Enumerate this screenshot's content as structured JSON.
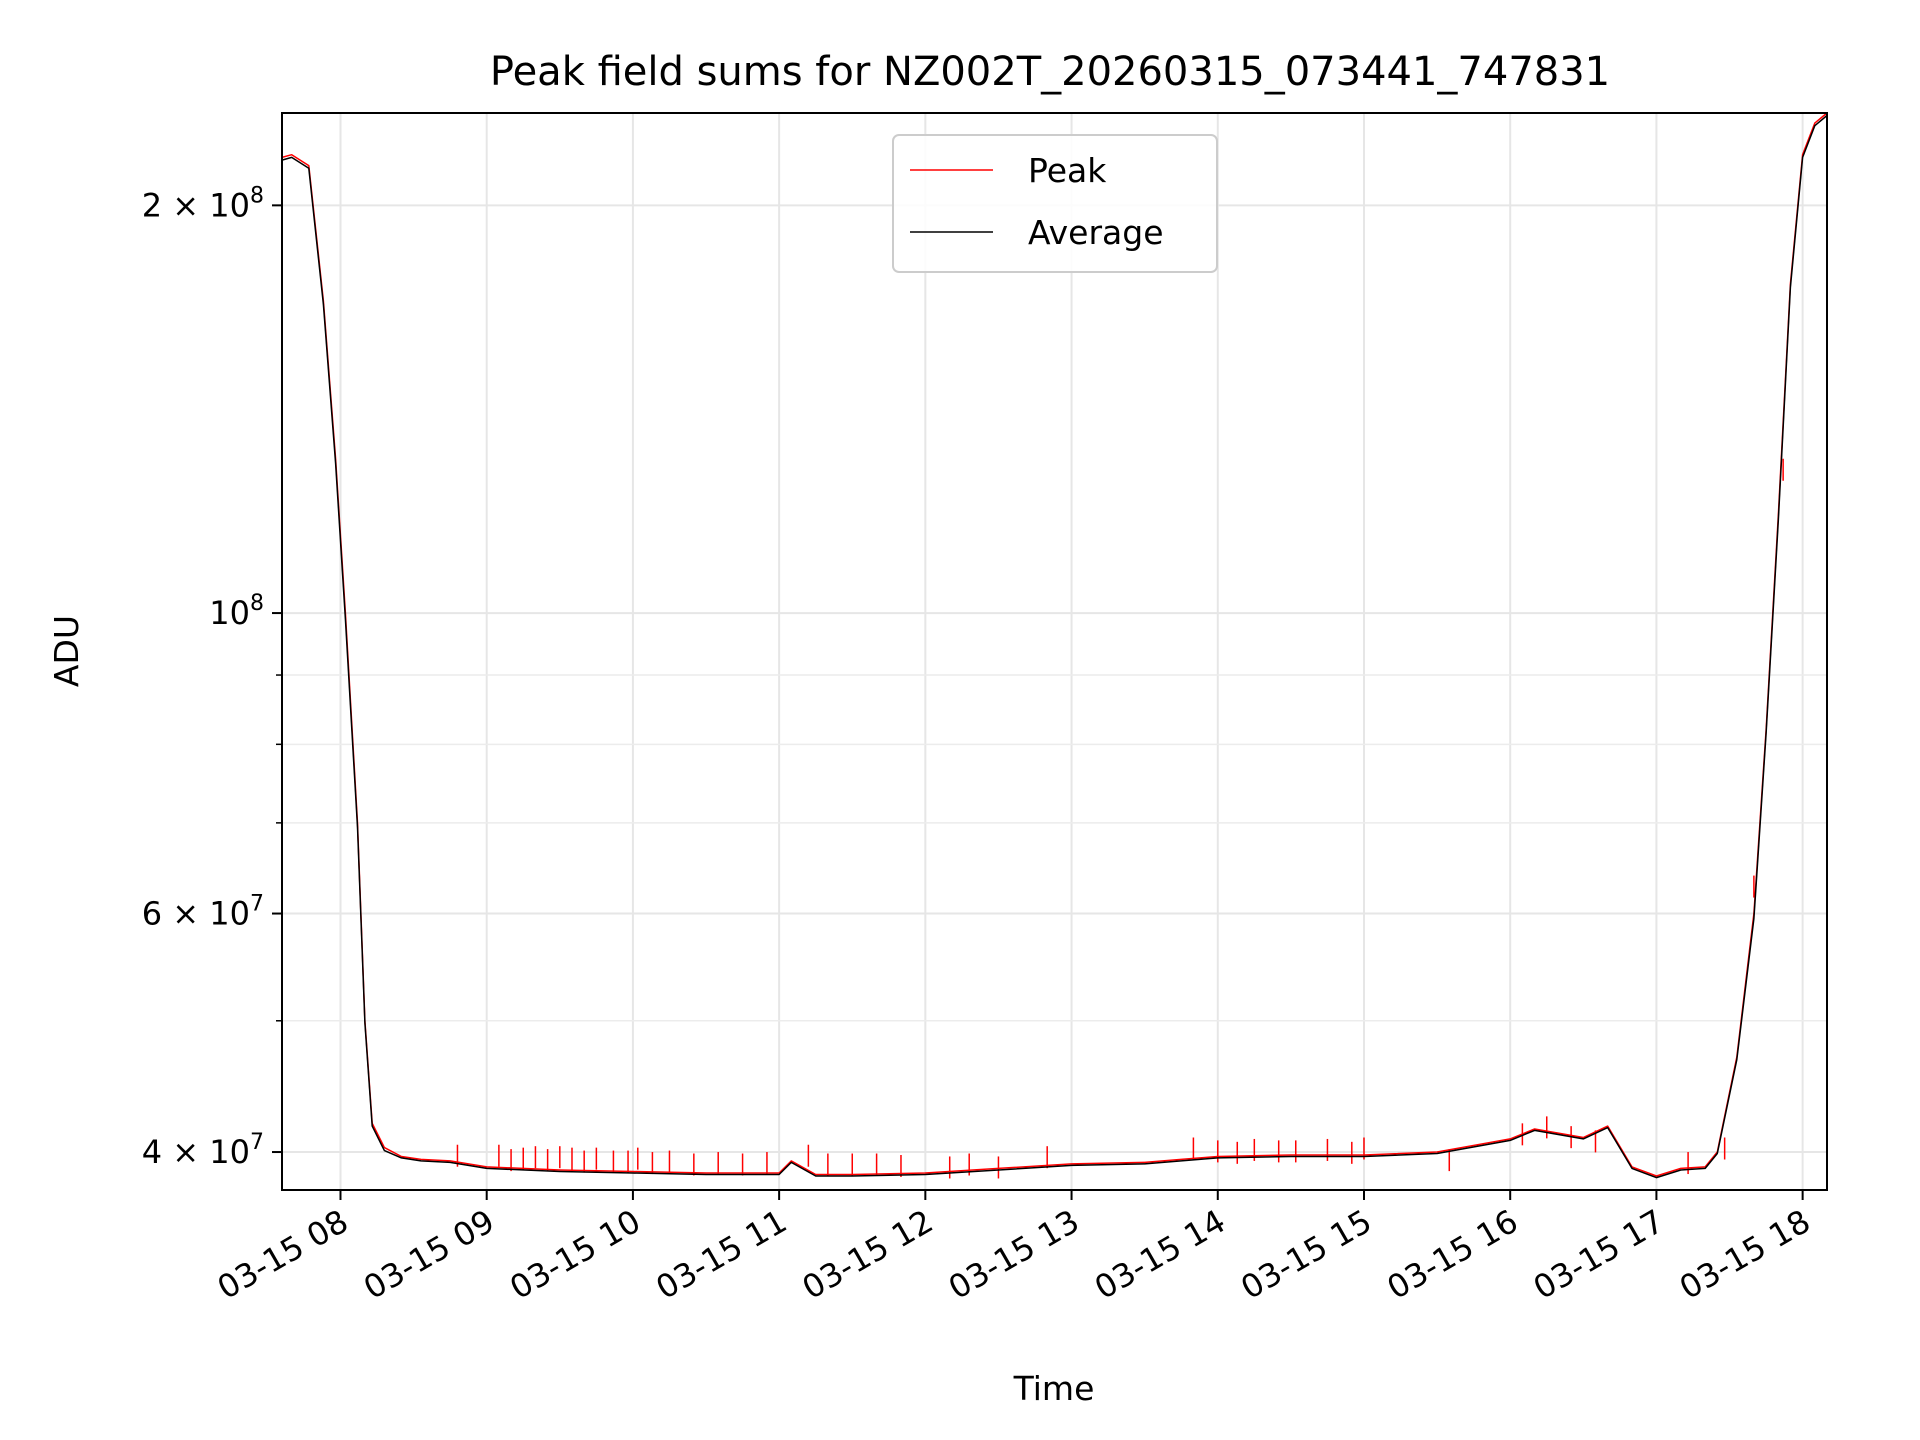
{
  "chart_data": {
    "type": "line",
    "title": "Peak field sums for NZ002T_20260315_073441_747831",
    "xlabel": "Time",
    "ylabel": "ADU",
    "y_scale": "log",
    "grid": true,
    "legend_position": "top-center",
    "xlim": [
      "2026-03-15 07:36",
      "2026-03-15 18:10"
    ],
    "ylim": [
      37500000,
      234000000
    ],
    "x_ticks": [
      "2026-03-15 08:00",
      "2026-03-15 09:00",
      "2026-03-15 10:00",
      "2026-03-15 11:00",
      "2026-03-15 12:00",
      "2026-03-15 13:00",
      "2026-03-15 14:00",
      "2026-03-15 15:00",
      "2026-03-15 16:00",
      "2026-03-15 17:00",
      "2026-03-15 18:00"
    ],
    "x_tick_labels": [
      "03-15 08",
      "03-15 09",
      "03-15 10",
      "03-15 11",
      "03-15 12",
      "03-15 13",
      "03-15 14",
      "03-15 15",
      "03-15 16",
      "03-15 17",
      "03-15 18"
    ],
    "y_ticks": [
      {
        "value": 40000000,
        "mantissa": "4",
        "exponent": "7"
      },
      {
        "value": 60000000,
        "mantissa": "6",
        "exponent": "7"
      },
      {
        "value": 100000000,
        "mantissa": "",
        "exponent": "8"
      },
      {
        "value": 200000000,
        "mantissa": "2",
        "exponent": "8"
      }
    ],
    "y_minor_ticks": [
      50000000,
      70000000,
      80000000,
      90000000
    ],
    "series": [
      {
        "name": "Peak",
        "color": "#ff0000",
        "x": [
          "2026-03-15 07:36",
          "2026-03-15 07:40",
          "2026-03-15 07:47",
          "2026-03-15 07:53",
          "2026-03-15 07:58",
          "2026-03-15 08:02",
          "2026-03-15 08:07",
          "2026-03-15 08:10",
          "2026-03-15 08:13",
          "2026-03-15 08:18",
          "2026-03-15 08:25",
          "2026-03-15 08:33",
          "2026-03-15 08:45",
          "2026-03-15 09:00",
          "2026-03-15 09:30",
          "2026-03-15 10:00",
          "2026-03-15 10:30",
          "2026-03-15 11:00",
          "2026-03-15 11:05",
          "2026-03-15 11:15",
          "2026-03-15 11:30",
          "2026-03-15 12:00",
          "2026-03-15 12:30",
          "2026-03-15 13:00",
          "2026-03-15 13:30",
          "2026-03-15 13:45",
          "2026-03-15 14:00",
          "2026-03-15 14:30",
          "2026-03-15 15:00",
          "2026-03-15 15:30",
          "2026-03-15 16:00",
          "2026-03-15 16:10",
          "2026-03-15 16:30",
          "2026-03-15 16:40",
          "2026-03-15 16:50",
          "2026-03-15 17:00",
          "2026-03-15 17:10",
          "2026-03-15 17:20",
          "2026-03-15 17:25",
          "2026-03-15 17:33",
          "2026-03-15 17:40",
          "2026-03-15 17:45",
          "2026-03-15 17:50",
          "2026-03-15 17:55",
          "2026-03-15 18:00",
          "2026-03-15 18:05",
          "2026-03-15 18:10"
        ],
        "y": [
          217000000,
          218000000,
          214000000,
          170000000,
          130000000,
          100000000,
          70000000,
          50000000,
          42000000,
          40300000,
          39700000,
          39500000,
          39400000,
          39000000,
          38800000,
          38700000,
          38600000,
          38600000,
          39400000,
          38500000,
          38500000,
          38600000,
          38900000,
          39200000,
          39300000,
          39500000,
          39700000,
          39800000,
          39800000,
          40000000,
          40900000,
          41600000,
          41000000,
          41800000,
          39000000,
          38400000,
          38900000,
          39000000,
          40000000,
          47000000,
          60000000,
          82000000,
          118000000,
          175000000,
          218000000,
          230000000,
          234000000
        ],
        "spikes": [
          {
            "x": "2026-03-15 08:48",
            "y": 40500000
          },
          {
            "x": "2026-03-15 09:05",
            "y": 40500000
          },
          {
            "x": "2026-03-15 09:10",
            "y": 40200000
          },
          {
            "x": "2026-03-15 09:15",
            "y": 40300000
          },
          {
            "x": "2026-03-15 09:20",
            "y": 40400000
          },
          {
            "x": "2026-03-15 09:25",
            "y": 40200000
          },
          {
            "x": "2026-03-15 09:30",
            "y": 40400000
          },
          {
            "x": "2026-03-15 09:35",
            "y": 40300000
          },
          {
            "x": "2026-03-15 09:40",
            "y": 40100000
          },
          {
            "x": "2026-03-15 09:45",
            "y": 40300000
          },
          {
            "x": "2026-03-15 09:52",
            "y": 40100000
          },
          {
            "x": "2026-03-15 09:58",
            "y": 40100000
          },
          {
            "x": "2026-03-15 10:02",
            "y": 40300000
          },
          {
            "x": "2026-03-15 10:08",
            "y": 40000000
          },
          {
            "x": "2026-03-15 10:15",
            "y": 40100000
          },
          {
            "x": "2026-03-15 10:25",
            "y": 39900000
          },
          {
            "x": "2026-03-15 10:35",
            "y": 40000000
          },
          {
            "x": "2026-03-15 10:45",
            "y": 39900000
          },
          {
            "x": "2026-03-15 10:55",
            "y": 40000000
          },
          {
            "x": "2026-03-15 11:12",
            "y": 40500000
          },
          {
            "x": "2026-03-15 11:20",
            "y": 39900000
          },
          {
            "x": "2026-03-15 11:30",
            "y": 39900000
          },
          {
            "x": "2026-03-15 11:40",
            "y": 39900000
          },
          {
            "x": "2026-03-15 11:50",
            "y": 39800000
          },
          {
            "x": "2026-03-15 12:10",
            "y": 39700000
          },
          {
            "x": "2026-03-15 12:18",
            "y": 39900000
          },
          {
            "x": "2026-03-15 12:30",
            "y": 39700000
          },
          {
            "x": "2026-03-15 12:50",
            "y": 40400000
          },
          {
            "x": "2026-03-15 13:50",
            "y": 41000000
          },
          {
            "x": "2026-03-15 14:00",
            "y": 40800000
          },
          {
            "x": "2026-03-15 14:08",
            "y": 40700000
          },
          {
            "x": "2026-03-15 14:15",
            "y": 40900000
          },
          {
            "x": "2026-03-15 14:25",
            "y": 40800000
          },
          {
            "x": "2026-03-15 14:32",
            "y": 40800000
          },
          {
            "x": "2026-03-15 14:45",
            "y": 40900000
          },
          {
            "x": "2026-03-15 14:55",
            "y": 40700000
          },
          {
            "x": "2026-03-15 15:00",
            "y": 41000000
          },
          {
            "x": "2026-03-15 15:35",
            "y": 40200000
          },
          {
            "x": "2026-03-15 16:05",
            "y": 42000000
          },
          {
            "x": "2026-03-15 16:15",
            "y": 42500000
          },
          {
            "x": "2026-03-15 16:25",
            "y": 41800000
          },
          {
            "x": "2026-03-15 16:35",
            "y": 41500000
          },
          {
            "x": "2026-03-15 17:13",
            "y": 40000000
          },
          {
            "x": "2026-03-15 17:28",
            "y": 41000000
          },
          {
            "x": "2026-03-15 17:40",
            "y": 64000000
          },
          {
            "x": "2026-03-15 17:52",
            "y": 130000000
          }
        ]
      },
      {
        "name": "Average",
        "color": "#000000",
        "x": [
          "2026-03-15 07:36",
          "2026-03-15 07:40",
          "2026-03-15 07:47",
          "2026-03-15 07:53",
          "2026-03-15 07:58",
          "2026-03-15 08:02",
          "2026-03-15 08:07",
          "2026-03-15 08:10",
          "2026-03-15 08:13",
          "2026-03-15 08:18",
          "2026-03-15 08:25",
          "2026-03-15 08:33",
          "2026-03-15 08:45",
          "2026-03-15 09:00",
          "2026-03-15 09:30",
          "2026-03-15 10:00",
          "2026-03-15 10:30",
          "2026-03-15 11:00",
          "2026-03-15 11:05",
          "2026-03-15 11:15",
          "2026-03-15 11:30",
          "2026-03-15 12:00",
          "2026-03-15 12:30",
          "2026-03-15 13:00",
          "2026-03-15 13:30",
          "2026-03-15 13:45",
          "2026-03-15 14:00",
          "2026-03-15 14:30",
          "2026-03-15 15:00",
          "2026-03-15 15:30",
          "2026-03-15 16:00",
          "2026-03-15 16:10",
          "2026-03-15 16:30",
          "2026-03-15 16:40",
          "2026-03-15 16:50",
          "2026-03-15 17:00",
          "2026-03-15 17:10",
          "2026-03-15 17:20",
          "2026-03-15 17:25",
          "2026-03-15 17:33",
          "2026-03-15 17:40",
          "2026-03-15 17:45",
          "2026-03-15 17:50",
          "2026-03-15 17:55",
          "2026-03-15 18:00",
          "2026-03-15 18:05",
          "2026-03-15 18:10"
        ],
        "y": [
          216000000,
          217000000,
          213000000,
          169000000,
          129000000,
          99000000,
          69500000,
          49800000,
          41800000,
          40100000,
          39600000,
          39400000,
          39300000,
          38900000,
          38700000,
          38600000,
          38500000,
          38500000,
          39300000,
          38400000,
          38400000,
          38500000,
          38800000,
          39100000,
          39200000,
          39400000,
          39600000,
          39700000,
          39700000,
          39900000,
          40800000,
          41500000,
          40900000,
          41700000,
          38900000,
          38300000,
          38800000,
          38900000,
          39900000,
          46800000,
          59500000,
          81500000,
          117000000,
          174000000,
          217000000,
          229000000,
          233000000
        ]
      }
    ]
  }
}
